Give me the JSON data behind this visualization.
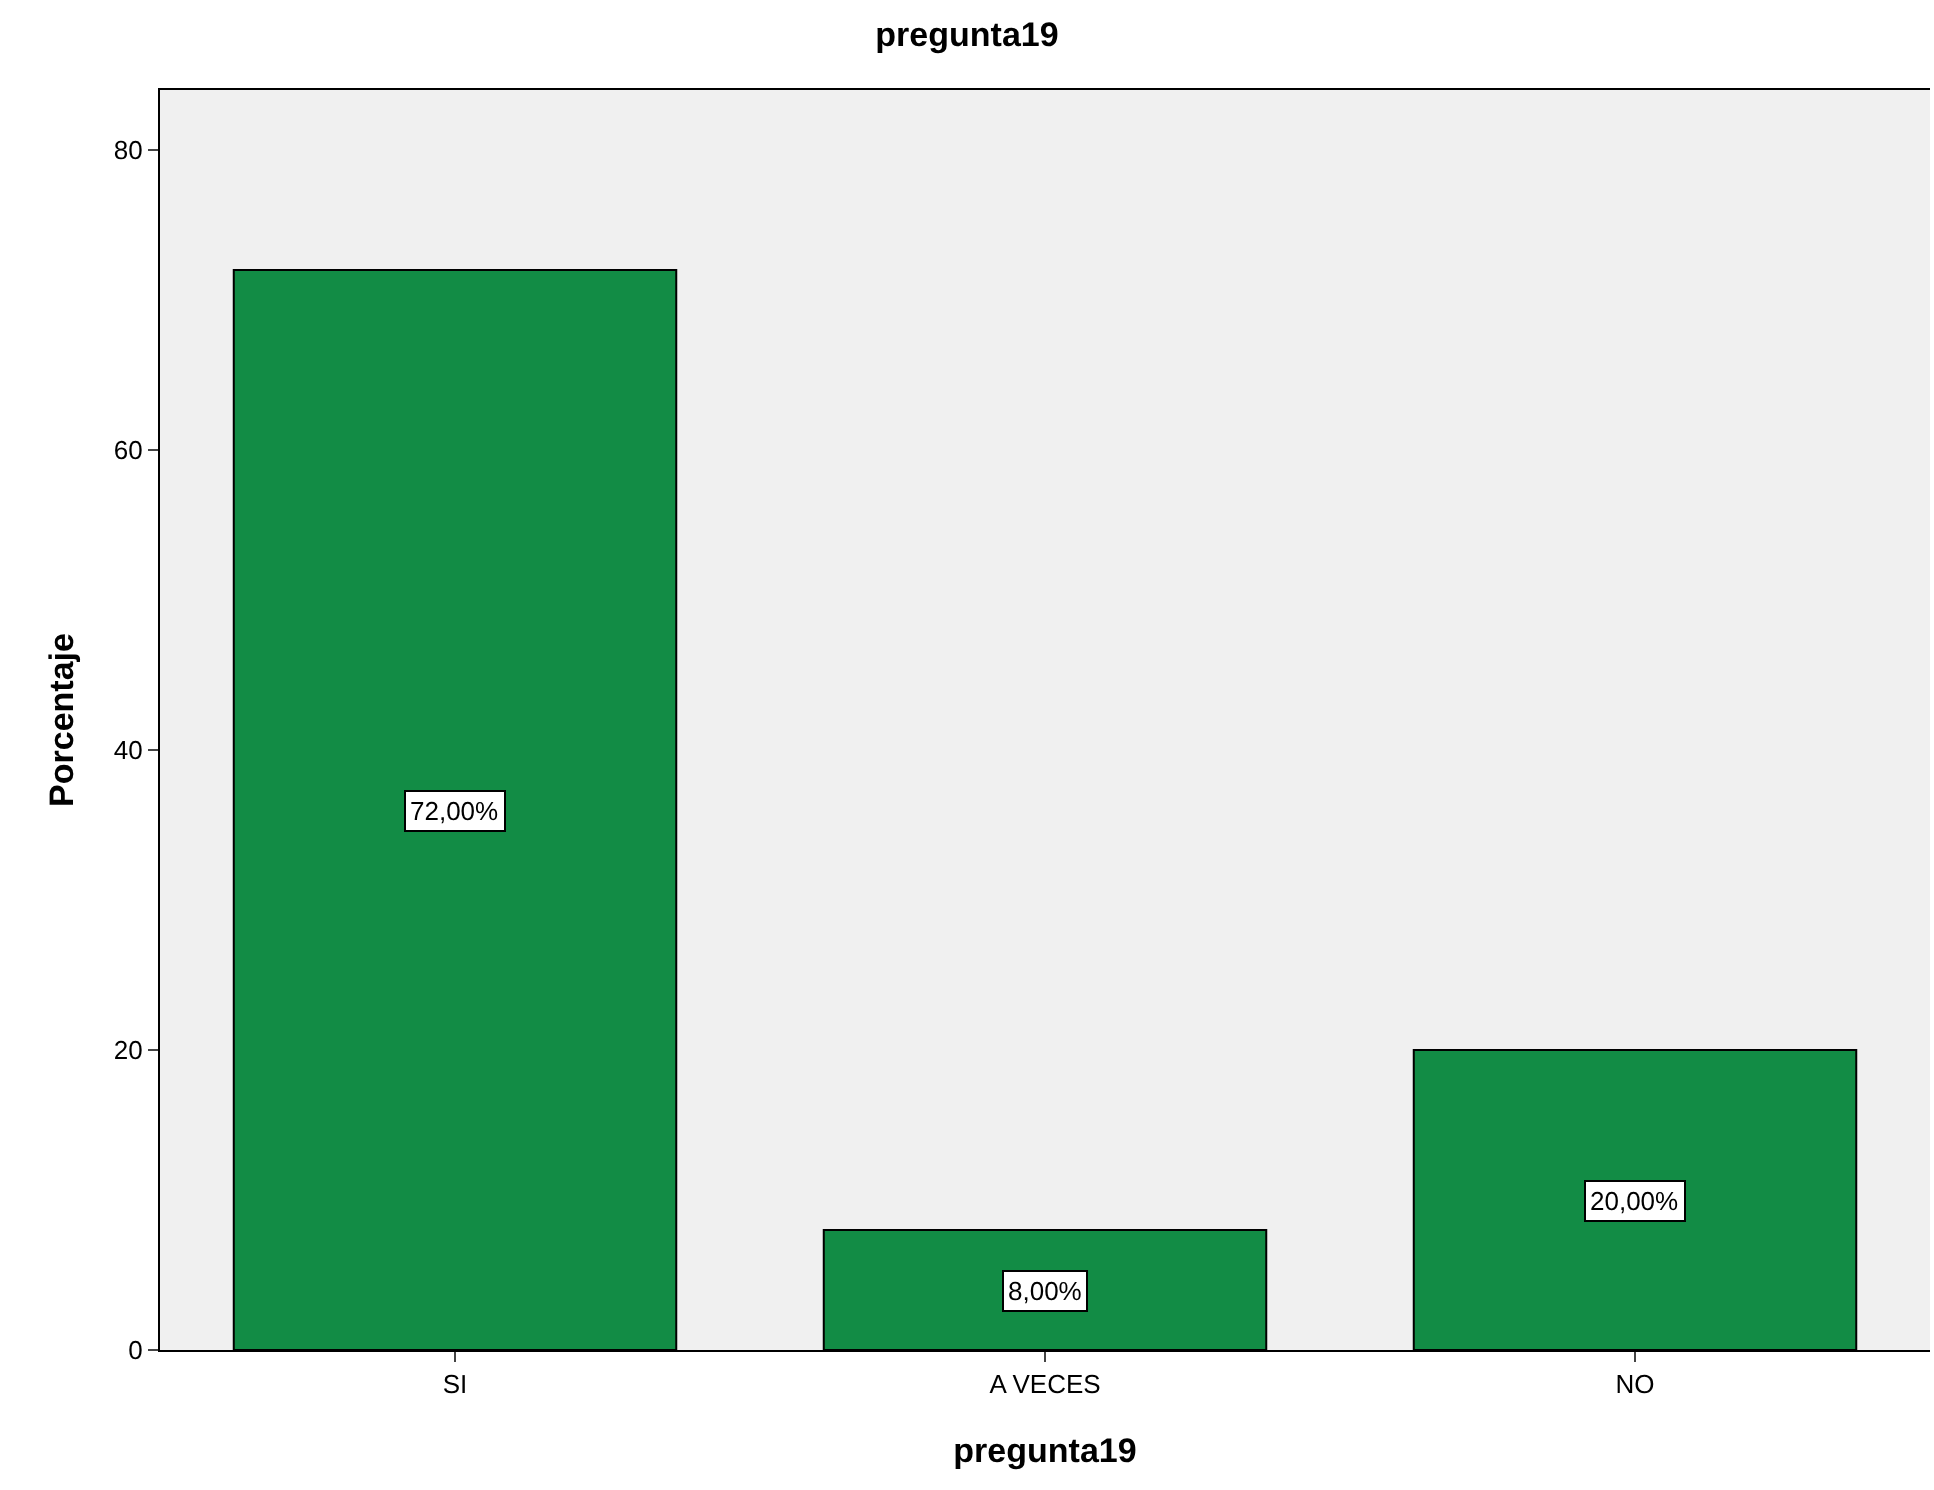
{
  "chart_data": {
    "type": "bar",
    "title": "pregunta19",
    "xlabel": "pregunta19",
    "ylabel": "Porcentaje",
    "categories": [
      "SI",
      "A VECES",
      "NO"
    ],
    "values": [
      72,
      8,
      20
    ],
    "value_labels": [
      "72,00%",
      "8,00%",
      "20,00%"
    ],
    "color": "#128c45",
    "ylim": [
      0,
      84
    ],
    "yticks": [
      0,
      20,
      40,
      60,
      80
    ],
    "grid": false
  }
}
